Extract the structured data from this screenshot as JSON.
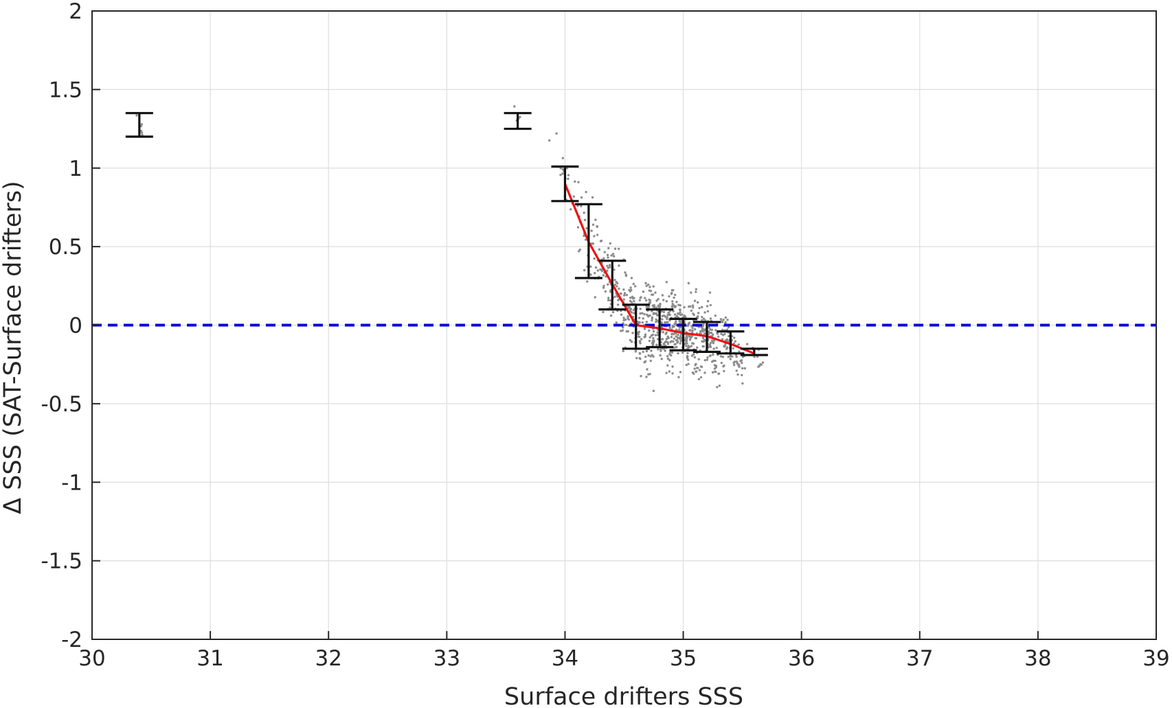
{
  "chart_data": {
    "type": "scatter",
    "title": "",
    "xlabel": "Surface drifters SSS",
    "ylabel": "Δ SSS (SAT-Surface drifters)",
    "xlim": [
      30,
      39
    ],
    "ylim": [
      -2,
      2
    ],
    "x_ticks": [
      30,
      31,
      32,
      33,
      34,
      35,
      36,
      37,
      38,
      39
    ],
    "y_ticks": [
      -2,
      -1.5,
      -1,
      -0.5,
      0,
      0.5,
      1,
      1.5,
      2
    ],
    "x_tick_labels": [
      "30",
      "31",
      "32",
      "33",
      "34",
      "35",
      "36",
      "37",
      "38",
      "39"
    ],
    "y_tick_labels": [
      "-2",
      "-1.5",
      "-1",
      "-0.5",
      "0",
      "0.5",
      "1",
      "1.5",
      "2"
    ],
    "grid": true,
    "reference_line": {
      "y": 0,
      "color": "#0000dd",
      "style": "dashed"
    },
    "mean_line": {
      "color": "#ee1111",
      "x": [
        34.0,
        34.2,
        34.4,
        34.6,
        34.8,
        35.0,
        35.2,
        35.4,
        35.6
      ],
      "y": [
        0.9,
        0.53,
        0.26,
        0.0,
        -0.02,
        -0.05,
        -0.07,
        -0.12,
        -0.18
      ]
    },
    "error_bars": {
      "color": "#111111",
      "bars": [
        {
          "x": 30.4,
          "low": 1.2,
          "high": 1.35
        },
        {
          "x": 33.6,
          "low": 1.25,
          "high": 1.35
        },
        {
          "x": 34.0,
          "low": 0.79,
          "high": 1.01
        },
        {
          "x": 34.2,
          "low": 0.3,
          "high": 0.77
        },
        {
          "x": 34.4,
          "low": 0.1,
          "high": 0.41
        },
        {
          "x": 34.6,
          "low": -0.15,
          "high": 0.13
        },
        {
          "x": 34.8,
          "low": -0.14,
          "high": 0.1
        },
        {
          "x": 35.0,
          "low": -0.16,
          "high": 0.04
        },
        {
          "x": 35.2,
          "low": -0.17,
          "high": 0.02
        },
        {
          "x": 35.4,
          "low": -0.18,
          "high": -0.04
        },
        {
          "x": 35.6,
          "low": -0.19,
          "high": -0.15
        }
      ]
    },
    "scatter": {
      "color": "#8c8c8c",
      "clusters": [
        {
          "x": 30.4,
          "y": 1.27,
          "n": 6,
          "sx": 0.02,
          "sy": 0.05
        },
        {
          "x": 33.6,
          "y": 1.31,
          "n": 6,
          "sx": 0.02,
          "sy": 0.04
        },
        {
          "x": 34.0,
          "y": 0.92,
          "n": 22,
          "sx": 0.05,
          "sy": 0.09
        },
        {
          "x": 34.2,
          "y": 0.55,
          "n": 45,
          "sx": 0.07,
          "sy": 0.14
        },
        {
          "x": 34.4,
          "y": 0.26,
          "n": 80,
          "sx": 0.07,
          "sy": 0.12
        },
        {
          "x": 34.6,
          "y": 0.0,
          "n": 140,
          "sx": 0.07,
          "sy": 0.11
        },
        {
          "x": 34.8,
          "y": -0.02,
          "n": 180,
          "sx": 0.07,
          "sy": 0.1
        },
        {
          "x": 35.0,
          "y": -0.05,
          "n": 200,
          "sx": 0.07,
          "sy": 0.09
        },
        {
          "x": 35.2,
          "y": -0.07,
          "n": 160,
          "sx": 0.07,
          "sy": 0.08
        },
        {
          "x": 35.4,
          "y": -0.12,
          "n": 90,
          "sx": 0.07,
          "sy": 0.06
        },
        {
          "x": 35.6,
          "y": -0.18,
          "n": 12,
          "sx": 0.04,
          "sy": 0.03
        }
      ]
    }
  }
}
